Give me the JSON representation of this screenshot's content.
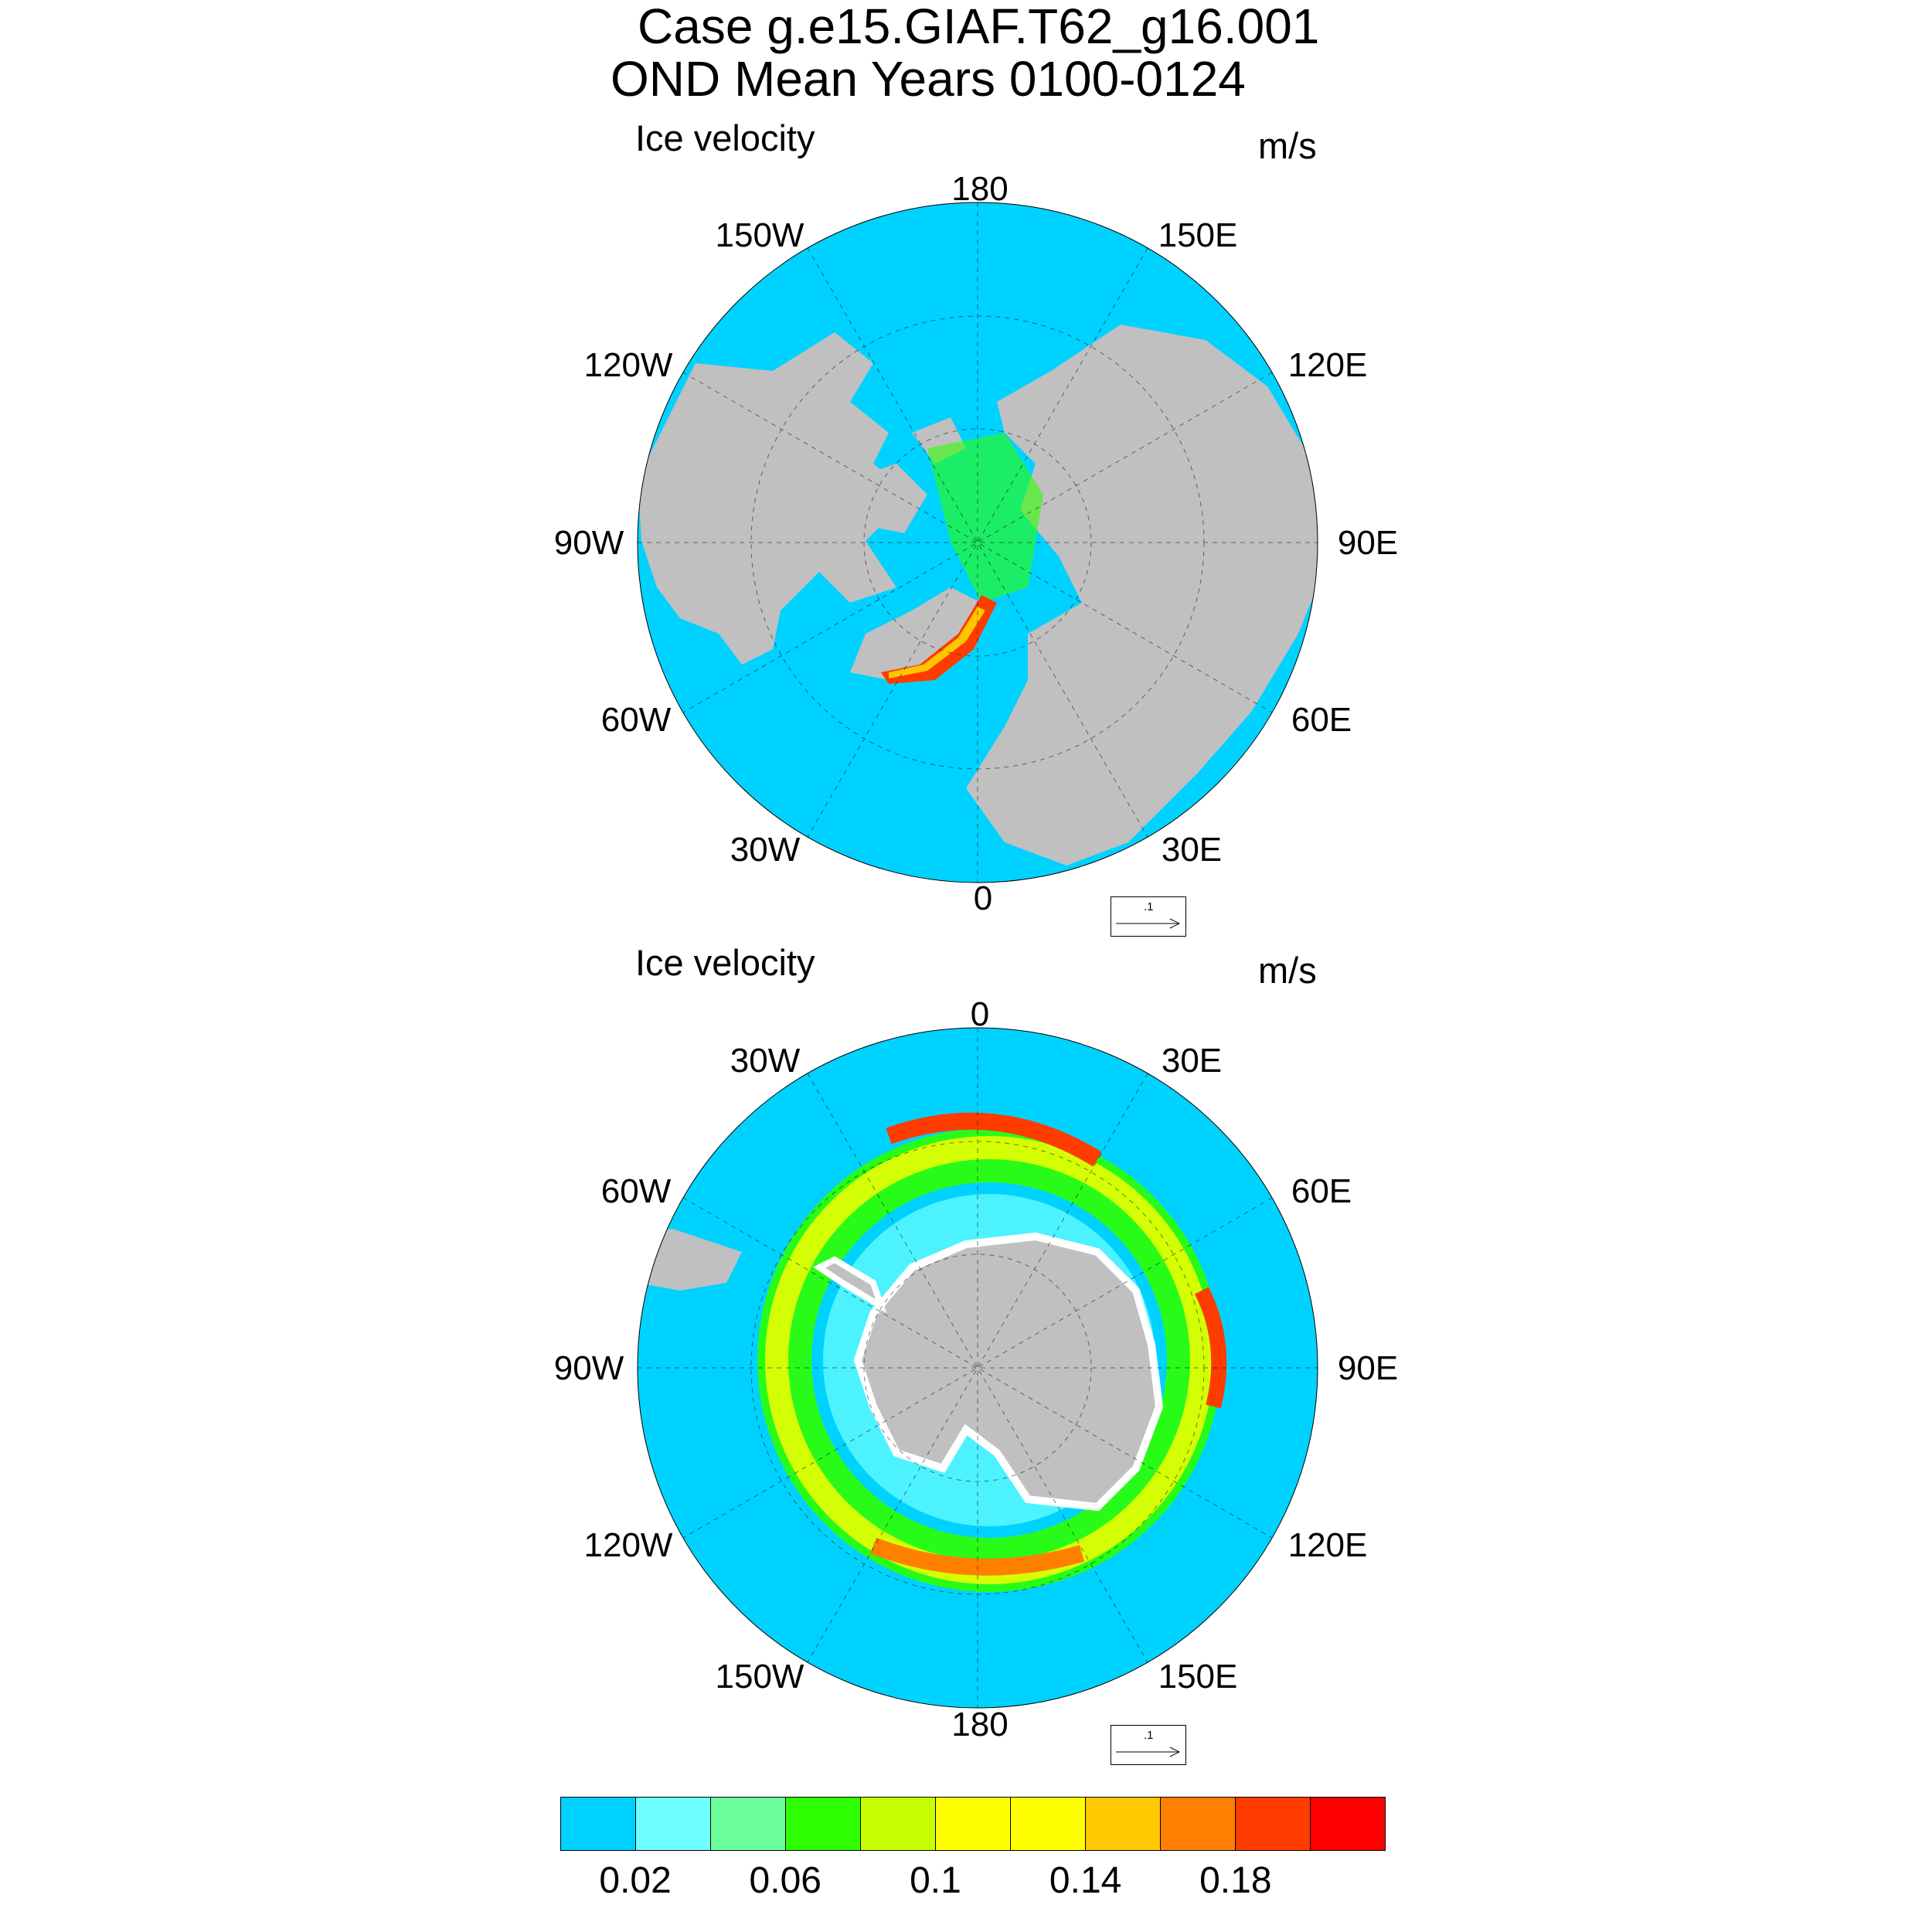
{
  "title": {
    "line1": "Case g.e15.GIAF.T62_g16.001",
    "line2": "OND Mean   Years 0100-0124"
  },
  "panels": [
    {
      "name": "north",
      "left_label": "Ice velocity",
      "right_label": "m/s",
      "longitude_labels": [
        "180",
        "150E",
        "120E",
        "90E",
        "60E",
        "30E",
        "0",
        "30W",
        "60W",
        "90W",
        "120W",
        "150W"
      ],
      "reference_vector_label": ".1"
    },
    {
      "name": "south",
      "left_label": "Ice velocity",
      "right_label": "m/s",
      "longitude_labels": [
        "0",
        "30E",
        "60E",
        "90E",
        "120E",
        "150E",
        "180",
        "150W",
        "120W",
        "90W",
        "60W",
        "30W"
      ],
      "reference_vector_label": ".1"
    }
  ],
  "colorbar": {
    "colors": [
      "#00d2ff",
      "#6effff",
      "#6cff9e",
      "#2eff00",
      "#c8ff00",
      "#ffff00",
      "#ffff00",
      "#ffc800",
      "#ff8000",
      "#ff3c00",
      "#ff0000"
    ],
    "labels": [
      "0.02",
      "0.06",
      "0.1",
      "0.14",
      "0.18"
    ]
  },
  "colors": {
    "ocean": "#00d2ff",
    "land": "#c0c0c0",
    "coast_gap": "#ffffff"
  }
}
